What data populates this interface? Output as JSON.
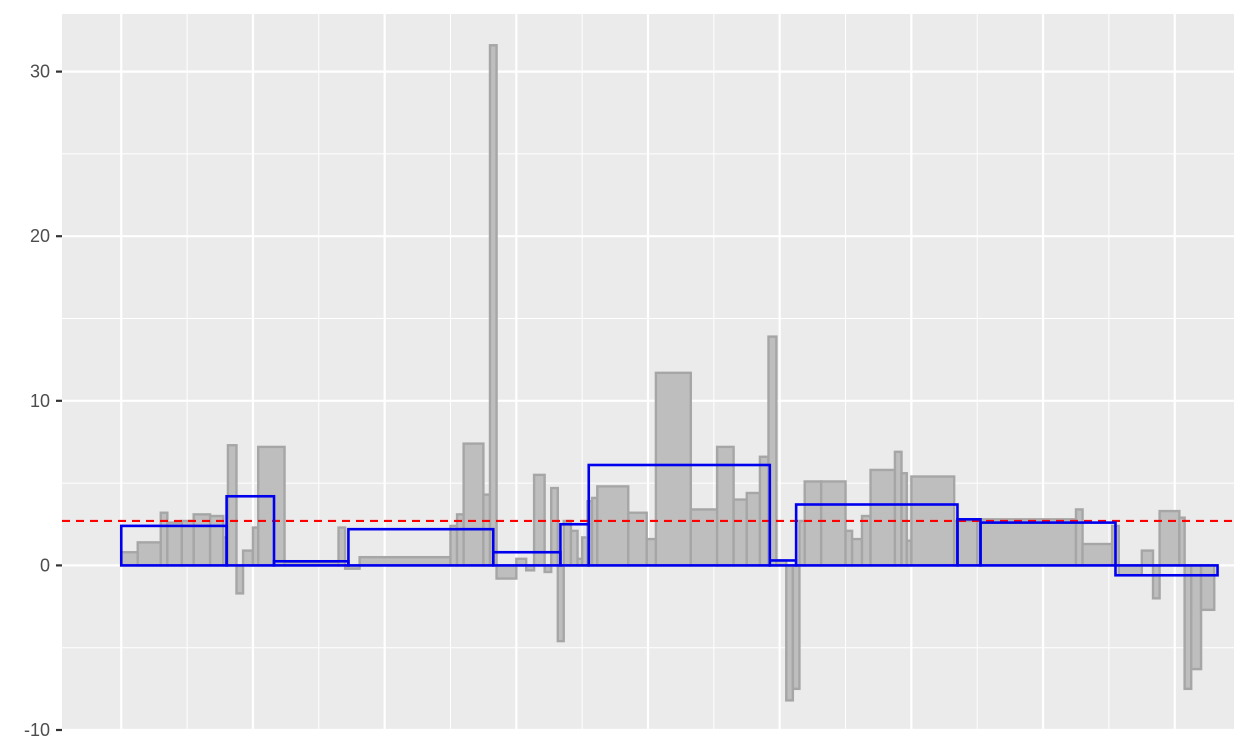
{
  "chart_data": {
    "type": "bar",
    "title": "",
    "xlabel": "",
    "ylabel": "",
    "ylim": [
      -10,
      33.5
    ],
    "xlim": [
      -0.4,
      17.4
    ],
    "y_ticks": [
      -10,
      0,
      10,
      20,
      30
    ],
    "y_tick_labels": [
      "-10",
      "0",
      "10",
      "20",
      "30"
    ],
    "x_gridlines": [
      0.5,
      2.5,
      4.5,
      6.5,
      8.5,
      10.5,
      12.5,
      14.5,
      16.5
    ],
    "x_minor_gridlines": [
      1.5,
      3.5,
      5.5,
      7.5,
      9.5,
      11.5,
      13.5,
      15.5
    ],
    "y_minor_gridlines": [
      -5,
      5,
      15,
      25
    ],
    "grid": true,
    "reference_line": {
      "value": 2.7,
      "style": "dashed",
      "color": "#ff0000"
    },
    "colors": {
      "panel_background": "#ebebeb",
      "gridline": "#ffffff",
      "bar_fill": "#bebebe",
      "bar_stroke": "#a6a6a6",
      "segment_stroke": "#0000ee",
      "reference_line": "#ff0000",
      "tick": "#333333",
      "tick_label": "#4d4d4d"
    },
    "series": [
      {
        "kind": "bars",
        "values": [
          {
            "x0": 0.5,
            "x1": 0.75,
            "y": 0.8
          },
          {
            "x0": 0.75,
            "x1": 1.1,
            "y": 1.4
          },
          {
            "x0": 1.1,
            "x1": 1.2,
            "y": 3.2
          },
          {
            "x0": 1.2,
            "x1": 1.42,
            "y": 2.6
          },
          {
            "x0": 1.42,
            "x1": 1.6,
            "y": 2.7
          },
          {
            "x0": 1.6,
            "x1": 1.85,
            "y": 3.1
          },
          {
            "x0": 1.85,
            "x1": 2.05,
            "y": 3.0
          },
          {
            "x0": 2.05,
            "x1": 2.12,
            "y": 1.7
          },
          {
            "x0": 2.12,
            "x1": 2.25,
            "y": 7.3
          },
          {
            "x0": 2.25,
            "x1": 2.35,
            "y": -1.7
          },
          {
            "x0": 2.35,
            "x1": 2.5,
            "y": 0.9
          },
          {
            "x0": 2.5,
            "x1": 2.58,
            "y": 2.3
          },
          {
            "x0": 2.58,
            "x1": 2.98,
            "y": 7.2
          },
          {
            "x0": 2.98,
            "x1": 3.8,
            "y": 0.2
          },
          {
            "x0": 3.8,
            "x1": 3.9,
            "y": 2.3
          },
          {
            "x0": 3.9,
            "x1": 4.12,
            "y": -0.2
          },
          {
            "x0": 4.12,
            "x1": 5.5,
            "y": 0.5
          },
          {
            "x0": 5.5,
            "x1": 5.6,
            "y": 2.4
          },
          {
            "x0": 5.6,
            "x1": 5.7,
            "y": 3.1
          },
          {
            "x0": 5.7,
            "x1": 6.0,
            "y": 7.4
          },
          {
            "x0": 6.0,
            "x1": 6.1,
            "y": 4.3
          },
          {
            "x0": 6.1,
            "x1": 6.2,
            "y": 31.6
          },
          {
            "x0": 6.2,
            "x1": 6.5,
            "y": -0.8
          },
          {
            "x0": 6.5,
            "x1": 6.65,
            "y": 0.4
          },
          {
            "x0": 6.65,
            "x1": 6.77,
            "y": -0.3
          },
          {
            "x0": 6.77,
            "x1": 6.93,
            "y": 5.5
          },
          {
            "x0": 6.93,
            "x1": 7.03,
            "y": -0.4
          },
          {
            "x0": 7.03,
            "x1": 7.13,
            "y": 4.7
          },
          {
            "x0": 7.13,
            "x1": 7.22,
            "y": -4.6
          },
          {
            "x0": 7.22,
            "x1": 7.33,
            "y": 2.7
          },
          {
            "x0": 7.33,
            "x1": 7.43,
            "y": 2.1
          },
          {
            "x0": 7.43,
            "x1": 7.5,
            "y": 0.4
          },
          {
            "x0": 7.5,
            "x1": 7.58,
            "y": 1.7
          },
          {
            "x0": 7.58,
            "x1": 7.65,
            "y": 3.9
          },
          {
            "x0": 7.65,
            "x1": 7.73,
            "y": 4.1
          },
          {
            "x0": 7.73,
            "x1": 8.2,
            "y": 4.8
          },
          {
            "x0": 8.2,
            "x1": 8.48,
            "y": 3.2
          },
          {
            "x0": 8.48,
            "x1": 8.62,
            "y": 1.6
          },
          {
            "x0": 8.62,
            "x1": 9.15,
            "y": 11.7
          },
          {
            "x0": 9.15,
            "x1": 9.55,
            "y": 3.4
          },
          {
            "x0": 9.55,
            "x1": 9.8,
            "y": 7.2
          },
          {
            "x0": 9.8,
            "x1": 10.0,
            "y": 4.0
          },
          {
            "x0": 10.0,
            "x1": 10.2,
            "y": 4.4
          },
          {
            "x0": 10.2,
            "x1": 10.33,
            "y": 6.6
          },
          {
            "x0": 10.33,
            "x1": 10.45,
            "y": 13.9
          },
          {
            "x0": 10.45,
            "x1": 10.6,
            "y": 0.3
          },
          {
            "x0": 10.6,
            "x1": 10.7,
            "y": -8.2
          },
          {
            "x0": 10.7,
            "x1": 10.8,
            "y": -7.5
          },
          {
            "x0": 10.8,
            "x1": 10.88,
            "y": 2.7
          },
          {
            "x0": 10.88,
            "x1": 11.13,
            "y": 5.1
          },
          {
            "x0": 11.13,
            "x1": 11.5,
            "y": 5.1
          },
          {
            "x0": 11.5,
            "x1": 11.6,
            "y": 2.1
          },
          {
            "x0": 11.6,
            "x1": 11.75,
            "y": 1.6
          },
          {
            "x0": 11.75,
            "x1": 11.88,
            "y": 3.0
          },
          {
            "x0": 11.88,
            "x1": 12.25,
            "y": 5.8
          },
          {
            "x0": 12.25,
            "x1": 12.35,
            "y": 6.9
          },
          {
            "x0": 12.35,
            "x1": 12.43,
            "y": 5.6
          },
          {
            "x0": 12.43,
            "x1": 12.5,
            "y": 1.5
          },
          {
            "x0": 12.5,
            "x1": 13.15,
            "y": 5.4
          },
          {
            "x0": 13.15,
            "x1": 13.5,
            "y": 2.7
          },
          {
            "x0": 13.5,
            "x1": 15.0,
            "y": 2.8
          },
          {
            "x0": 15.0,
            "x1": 15.1,
            "y": 3.4
          },
          {
            "x0": 15.1,
            "x1": 15.55,
            "y": 1.3
          },
          {
            "x0": 15.55,
            "x1": 15.65,
            "y": 2.4
          },
          {
            "x0": 15.65,
            "x1": 16.0,
            "y": -0.6
          },
          {
            "x0": 16.0,
            "x1": 16.17,
            "y": 0.9
          },
          {
            "x0": 16.17,
            "x1": 16.27,
            "y": -2.0
          },
          {
            "x0": 16.27,
            "x1": 16.57,
            "y": 3.3
          },
          {
            "x0": 16.57,
            "x1": 16.65,
            "y": 2.9
          },
          {
            "x0": 16.65,
            "x1": 16.75,
            "y": -7.5
          },
          {
            "x0": 16.75,
            "x1": 16.9,
            "y": -6.3
          },
          {
            "x0": 16.9,
            "x1": 17.1,
            "y": -2.7
          }
        ]
      },
      {
        "kind": "segments",
        "values": [
          {
            "x0": 0.5,
            "x1": 2.1,
            "y": 2.4
          },
          {
            "x0": 2.1,
            "x1": 2.82,
            "y": 4.2
          },
          {
            "x0": 2.82,
            "x1": 3.95,
            "y": 0.25
          },
          {
            "x0": 3.95,
            "x1": 6.15,
            "y": 2.2
          },
          {
            "x0": 6.15,
            "x1": 7.17,
            "y": 0.8
          },
          {
            "x0": 7.17,
            "x1": 7.6,
            "y": 2.5
          },
          {
            "x0": 7.6,
            "x1": 10.35,
            "y": 6.1
          },
          {
            "x0": 10.35,
            "x1": 10.75,
            "y": 0.3
          },
          {
            "x0": 10.75,
            "x1": 13.2,
            "y": 3.7
          },
          {
            "x0": 13.2,
            "x1": 13.55,
            "y": 2.8
          },
          {
            "x0": 13.55,
            "x1": 15.6,
            "y": 2.6
          },
          {
            "x0": 15.6,
            "x1": 17.15,
            "y": -0.6
          }
        ]
      }
    ]
  }
}
